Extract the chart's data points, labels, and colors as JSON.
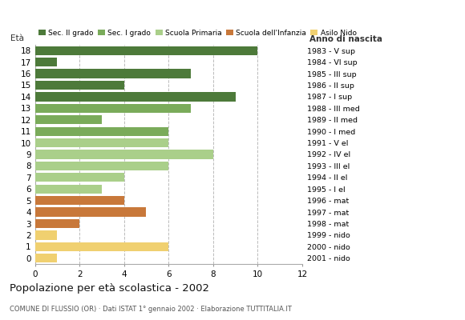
{
  "ages": [
    18,
    17,
    16,
    15,
    14,
    13,
    12,
    11,
    10,
    9,
    8,
    7,
    6,
    5,
    4,
    3,
    2,
    1,
    0
  ],
  "right_labels": [
    "1983 - V sup",
    "1984 - VI sup",
    "1985 - III sup",
    "1986 - II sup",
    "1987 - I sup",
    "1988 - III med",
    "1989 - II med",
    "1990 - I med",
    "1991 - V el",
    "1992 - IV el",
    "1993 - III el",
    "1994 - II el",
    "1995 - I el",
    "1996 - mat",
    "1997 - mat",
    "1998 - mat",
    "1999 - nido",
    "2000 - nido",
    "2001 - nido"
  ],
  "values": [
    10,
    1,
    7,
    4,
    9,
    7,
    3,
    6,
    6,
    8,
    6,
    4,
    3,
    4,
    5,
    2,
    1,
    6,
    1
  ],
  "colors": [
    "#4d7a3a",
    "#4d7a3a",
    "#4d7a3a",
    "#4d7a3a",
    "#4d7a3a",
    "#7aab5a",
    "#7aab5a",
    "#7aab5a",
    "#aacf8a",
    "#aacf8a",
    "#aacf8a",
    "#aacf8a",
    "#aacf8a",
    "#c8783a",
    "#c8783a",
    "#c8783a",
    "#f0d070",
    "#f0d070",
    "#f0d070"
  ],
  "legend_labels": [
    "Sec. II grado",
    "Sec. I grado",
    "Scuola Primaria",
    "Scuola dell'Infanzia",
    "Asilo Nido"
  ],
  "legend_colors": [
    "#4d7a3a",
    "#7aab5a",
    "#aacf8a",
    "#c8783a",
    "#f0d070"
  ],
  "title": "Popolazione per età scolastica - 2002",
  "subtitle": "COMUNE DI FLUSSIO (OR) · Dati ISTAT 1° gennaio 2002 · Elaborazione TUTTITALIA.IT",
  "label_eta": "Età",
  "label_anno": "Anno di nascita",
  "xlim": [
    0,
    12
  ],
  "xticks": [
    0,
    2,
    4,
    6,
    8,
    10,
    12
  ],
  "background_color": "#ffffff",
  "grid_color": "#bbbbbb"
}
